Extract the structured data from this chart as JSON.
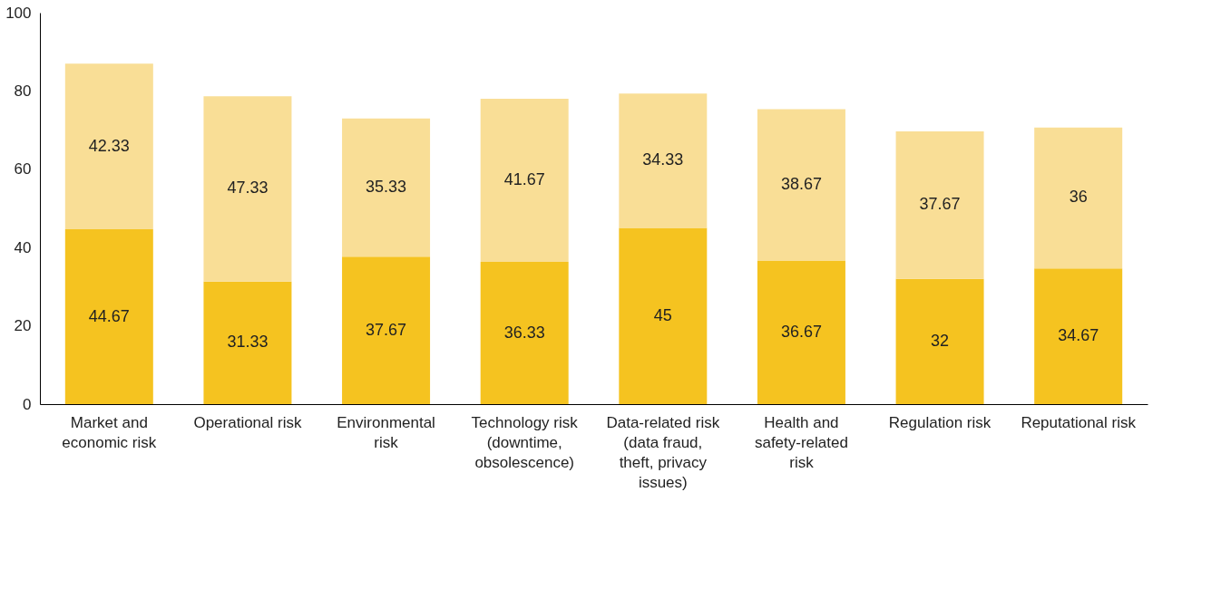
{
  "chart_data": {
    "type": "bar",
    "stacked": true,
    "data_labels": true,
    "grid": false,
    "categories": [
      "Market and economic risk",
      "Operational risk",
      "Environmental risk",
      "Technology risk (downtime, obsolescence)",
      "Data-related risk (data fraud, theft, privacy issues)",
      "Health and safety-related risk",
      "Regulation risk",
      "Reputational risk"
    ],
    "series": [
      {
        "color": "#f5c320",
        "values": [
          44.67,
          31.33,
          37.67,
          36.33,
          45,
          36.67,
          32,
          34.67
        ]
      },
      {
        "color": "#f9de96",
        "values": [
          42.33,
          47.33,
          35.33,
          41.67,
          34.33,
          38.67,
          37.67,
          36
        ]
      }
    ],
    "ylim": [
      0,
      100
    ],
    "yticks": [
      0,
      20,
      40,
      60,
      80,
      100
    ]
  }
}
